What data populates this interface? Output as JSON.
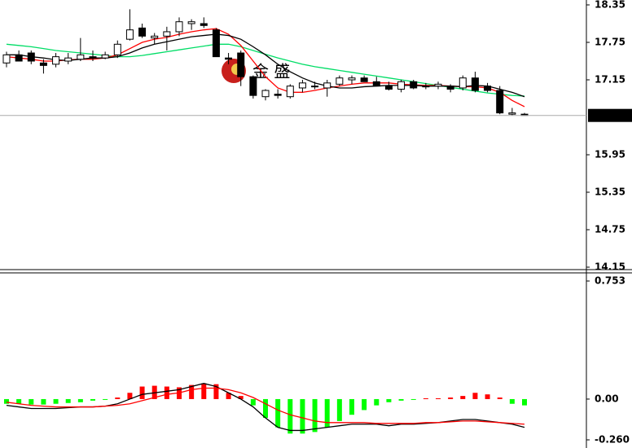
{
  "chart_data": [
    {
      "type": "candlestick",
      "watermark": "金 盛",
      "open": [
        17.42,
        17.55,
        17.58,
        17.42,
        17.4,
        17.45,
        17.48,
        17.52,
        17.5,
        17.55,
        17.8,
        17.98,
        17.82,
        17.85,
        17.92,
        18.05,
        18.05,
        17.95,
        17.5,
        17.58,
        17.2,
        16.88,
        16.92,
        16.88,
        17.02,
        17.05,
        17.02,
        17.08,
        17.15,
        17.18,
        17.12,
        17.05,
        17.0,
        17.12,
        17.05,
        17.05,
        17.05,
        17.02,
        17.18,
        17.05,
        16.98,
        16.6,
        16.6
      ],
      "high": [
        17.6,
        17.62,
        17.62,
        17.48,
        17.58,
        17.58,
        17.82,
        17.62,
        17.6,
        17.78,
        18.28,
        18.05,
        17.9,
        18.0,
        18.15,
        18.12,
        18.15,
        17.98,
        17.58,
        17.62,
        17.22,
        17.0,
        17.0,
        17.08,
        17.15,
        17.12,
        17.15,
        17.22,
        17.22,
        17.22,
        17.2,
        17.12,
        17.15,
        17.15,
        17.1,
        17.12,
        17.08,
        17.22,
        17.28,
        17.1,
        17.05,
        16.7,
        16.62
      ],
      "low": [
        17.35,
        17.45,
        17.4,
        17.25,
        17.35,
        17.4,
        17.45,
        17.45,
        17.48,
        17.5,
        17.78,
        17.82,
        17.72,
        17.62,
        17.85,
        17.95,
        17.98,
        17.52,
        17.4,
        17.05,
        16.85,
        16.82,
        16.85,
        16.85,
        16.95,
        17.0,
        16.88,
        17.05,
        17.08,
        17.12,
        17.05,
        16.98,
        16.95,
        17.0,
        17.0,
        17.0,
        16.95,
        16.98,
        16.95,
        16.95,
        16.6,
        16.58,
        16.58
      ],
      "close": [
        17.55,
        17.45,
        17.45,
        17.38,
        17.52,
        17.5,
        17.55,
        17.5,
        17.55,
        17.72,
        17.95,
        17.85,
        17.85,
        17.92,
        18.08,
        18.08,
        18.02,
        17.52,
        17.48,
        17.2,
        16.9,
        16.98,
        16.9,
        17.05,
        17.1,
        17.05,
        17.1,
        17.18,
        17.18,
        17.12,
        17.05,
        17.0,
        17.12,
        17.02,
        17.05,
        17.08,
        17.0,
        17.18,
        16.98,
        16.98,
        16.62,
        16.62,
        16.58
      ],
      "series": [
        {
          "color": "#00dd66",
          "values": [
            17.72,
            17.7,
            17.68,
            17.65,
            17.62,
            17.6,
            17.58,
            17.56,
            17.54,
            17.52,
            17.52,
            17.54,
            17.57,
            17.6,
            17.63,
            17.66,
            17.69,
            17.72,
            17.72,
            17.68,
            17.62,
            17.56,
            17.5,
            17.45,
            17.4,
            17.36,
            17.33,
            17.3,
            17.27,
            17.24,
            17.21,
            17.18,
            17.15,
            17.12,
            17.09,
            17.06,
            17.03,
            17.0,
            16.97,
            16.94,
            16.92,
            16.9,
            16.89
          ]
        },
        {
          "color": "#ff0000",
          "values": [
            17.52,
            17.5,
            17.48,
            17.45,
            17.45,
            17.47,
            17.48,
            17.48,
            17.5,
            17.55,
            17.65,
            17.75,
            17.8,
            17.83,
            17.88,
            17.92,
            17.95,
            17.97,
            17.88,
            17.7,
            17.45,
            17.2,
            17.02,
            16.95,
            16.95,
            16.98,
            17.02,
            17.05,
            17.08,
            17.1,
            17.1,
            17.1,
            17.08,
            17.07,
            17.06,
            17.06,
            17.05,
            17.04,
            17.04,
            17.02,
            16.95,
            16.82,
            16.72
          ]
        },
        {
          "color": "#000000",
          "values": [
            17.55,
            17.55,
            17.52,
            17.5,
            17.47,
            17.46,
            17.48,
            17.5,
            17.5,
            17.52,
            17.58,
            17.66,
            17.72,
            17.76,
            17.8,
            17.84,
            17.86,
            17.88,
            17.86,
            17.8,
            17.68,
            17.55,
            17.4,
            17.28,
            17.18,
            17.1,
            17.05,
            17.02,
            17.02,
            17.04,
            17.05,
            17.06,
            17.06,
            17.06,
            17.05,
            17.05,
            17.05,
            17.04,
            17.06,
            17.05,
            17.0,
            16.95,
            16.88
          ]
        }
      ],
      "last_price": 16.58,
      "ylim": [
        14.15,
        18.35
      ],
      "yticks": [
        18.35,
        17.75,
        17.15,
        15.95,
        15.35,
        14.75,
        14.15
      ]
    },
    {
      "type": "macd",
      "histogram": {
        "up_color": "#ff0000",
        "down_color": "#00ff00",
        "values": [
          -0.03,
          -0.03,
          -0.035,
          -0.035,
          -0.03,
          -0.025,
          -0.02,
          -0.01,
          -0.005,
          0.01,
          0.04,
          0.08,
          0.085,
          0.08,
          0.075,
          0.09,
          0.1,
          0.095,
          0.04,
          0.02,
          -0.04,
          -0.12,
          -0.18,
          -0.22,
          -0.22,
          -0.21,
          -0.18,
          -0.14,
          -0.1,
          -0.07,
          -0.04,
          -0.02,
          -0.01,
          -0.005,
          0.005,
          0.005,
          0.01,
          0.02,
          0.04,
          0.03,
          0.01,
          -0.03,
          -0.04
        ]
      },
      "series": [
        {
          "color": "#000000",
          "values": [
            -0.04,
            -0.05,
            -0.06,
            -0.06,
            -0.06,
            -0.055,
            -0.05,
            -0.05,
            -0.045,
            -0.03,
            0.0,
            0.03,
            0.04,
            0.05,
            0.06,
            0.08,
            0.1,
            0.08,
            0.04,
            0.0,
            -0.05,
            -0.12,
            -0.18,
            -0.2,
            -0.2,
            -0.19,
            -0.18,
            -0.17,
            -0.16,
            -0.16,
            -0.16,
            -0.17,
            -0.16,
            -0.16,
            -0.155,
            -0.15,
            -0.14,
            -0.13,
            -0.13,
            -0.14,
            -0.15,
            -0.16,
            -0.18
          ]
        },
        {
          "color": "#ff0000",
          "values": [
            -0.02,
            -0.03,
            -0.04,
            -0.045,
            -0.05,
            -0.05,
            -0.05,
            -0.05,
            -0.045,
            -0.04,
            -0.03,
            -0.01,
            0.01,
            0.03,
            0.04,
            0.06,
            0.07,
            0.07,
            0.06,
            0.04,
            0.01,
            -0.03,
            -0.07,
            -0.1,
            -0.12,
            -0.14,
            -0.15,
            -0.15,
            -0.15,
            -0.15,
            -0.155,
            -0.155,
            -0.155,
            -0.155,
            -0.15,
            -0.15,
            -0.145,
            -0.14,
            -0.14,
            -0.145,
            -0.15,
            -0.155,
            -0.16
          ]
        }
      ],
      "ylim": [
        -0.26,
        0.753
      ],
      "yticks": [
        0.753,
        {
          "value": 0,
          "label": "0.00"
        },
        {
          "value": -0.26,
          "label": "-0.260"
        }
      ]
    }
  ]
}
